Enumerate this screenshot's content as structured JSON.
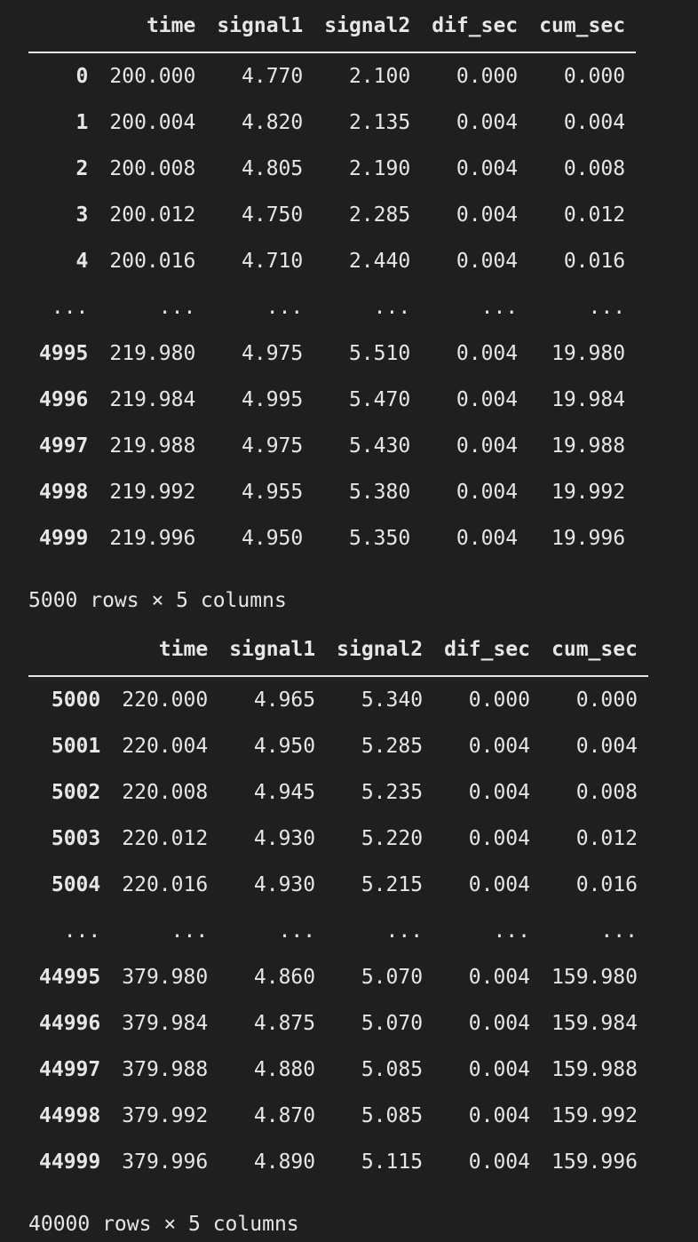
{
  "colors": {
    "background": "#1f1f1f",
    "text": "#e6e6e6"
  },
  "dataframes": [
    {
      "columns": [
        "",
        "time",
        "signal1",
        "signal2",
        "dif_sec",
        "cum_sec"
      ],
      "rows": [
        [
          "0",
          "200.000",
          "4.770",
          "2.100",
          "0.000",
          "0.000"
        ],
        [
          "1",
          "200.004",
          "4.820",
          "2.135",
          "0.004",
          "0.004"
        ],
        [
          "2",
          "200.008",
          "4.805",
          "2.190",
          "0.004",
          "0.008"
        ],
        [
          "3",
          "200.012",
          "4.750",
          "2.285",
          "0.004",
          "0.012"
        ],
        [
          "4",
          "200.016",
          "4.710",
          "2.440",
          "0.004",
          "0.016"
        ],
        [
          "...",
          "...",
          "...",
          "...",
          "...",
          "..."
        ],
        [
          "4995",
          "219.980",
          "4.975",
          "5.510",
          "0.004",
          "19.980"
        ],
        [
          "4996",
          "219.984",
          "4.995",
          "5.470",
          "0.004",
          "19.984"
        ],
        [
          "4997",
          "219.988",
          "4.975",
          "5.430",
          "0.004",
          "19.988"
        ],
        [
          "4998",
          "219.992",
          "4.955",
          "5.380",
          "0.004",
          "19.992"
        ],
        [
          "4999",
          "219.996",
          "4.950",
          "5.350",
          "0.004",
          "19.996"
        ]
      ],
      "shape": "5000 rows × 5 columns"
    },
    {
      "columns": [
        "",
        "time",
        "signal1",
        "signal2",
        "dif_sec",
        "cum_sec"
      ],
      "rows": [
        [
          "5000",
          "220.000",
          "4.965",
          "5.340",
          "0.000",
          "0.000"
        ],
        [
          "5001",
          "220.004",
          "4.950",
          "5.285",
          "0.004",
          "0.004"
        ],
        [
          "5002",
          "220.008",
          "4.945",
          "5.235",
          "0.004",
          "0.008"
        ],
        [
          "5003",
          "220.012",
          "4.930",
          "5.220",
          "0.004",
          "0.012"
        ],
        [
          "5004",
          "220.016",
          "4.930",
          "5.215",
          "0.004",
          "0.016"
        ],
        [
          "...",
          "...",
          "...",
          "...",
          "...",
          "..."
        ],
        [
          "44995",
          "379.980",
          "4.860",
          "5.070",
          "0.004",
          "159.980"
        ],
        [
          "44996",
          "379.984",
          "4.875",
          "5.070",
          "0.004",
          "159.984"
        ],
        [
          "44997",
          "379.988",
          "4.880",
          "5.085",
          "0.004",
          "159.988"
        ],
        [
          "44998",
          "379.992",
          "4.870",
          "5.085",
          "0.004",
          "159.992"
        ],
        [
          "44999",
          "379.996",
          "4.890",
          "5.115",
          "0.004",
          "159.996"
        ]
      ],
      "shape": "40000 rows × 5 columns"
    }
  ]
}
